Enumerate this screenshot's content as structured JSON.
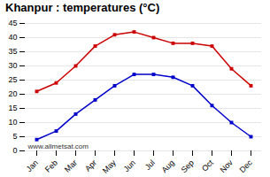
{
  "chart_data": {
    "type": "line",
    "title": "Khanpur : temperatures (°C)",
    "categories": [
      "Jan",
      "Feb",
      "Mar",
      "Apr",
      "May",
      "Jun",
      "Jul",
      "Aug",
      "Sep",
      "Oct",
      "Nov",
      "Dec"
    ],
    "series": [
      {
        "color": "#cc0000",
        "marker": "square",
        "values": [
          21,
          24,
          30,
          37,
          41,
          42,
          40,
          38,
          38,
          37,
          29,
          23
        ]
      },
      {
        "color": "#0000cc",
        "marker": "square",
        "values": [
          4,
          7,
          13,
          18,
          23,
          27,
          27,
          26,
          23,
          16,
          10,
          5
        ]
      }
    ],
    "ylim": [
      0,
      45
    ],
    "yticks": [
      0,
      5,
      10,
      15,
      20,
      25,
      30,
      35,
      40,
      45
    ],
    "grid": true,
    "annotations": [
      "www.allmetsat.com"
    ]
  }
}
